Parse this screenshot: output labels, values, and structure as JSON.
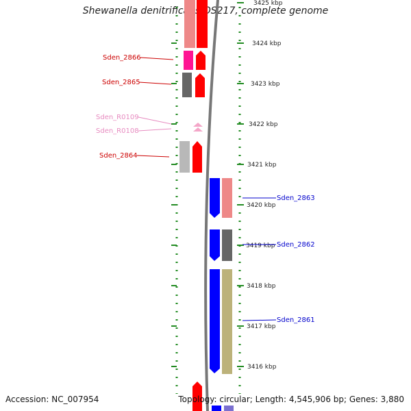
{
  "title": "Shewanella denitrificans OS217, complete genome",
  "footer": {
    "accession": "Accession: NC_007954",
    "topology": "Topology: circular; Length: 4,545,906 bp; Genes: 3,880"
  },
  "scale": {
    "unit": "kbp",
    "ticks": [
      {
        "label": "3425 kbp",
        "kbp": 3425
      },
      {
        "label": "3424 kbp",
        "kbp": 3424
      },
      {
        "label": "3423 kbp",
        "kbp": 3423
      },
      {
        "label": "3422 kbp",
        "kbp": 3422
      },
      {
        "label": "3421 kbp",
        "kbp": 3421
      },
      {
        "label": "3420 kbp",
        "kbp": 3420
      },
      {
        "label": "3419 kbp",
        "kbp": 3419
      },
      {
        "label": "3418 kbp",
        "kbp": 3418
      },
      {
        "label": "3417 kbp",
        "kbp": 3417
      },
      {
        "label": "3416 kbp",
        "kbp": 3416
      }
    ]
  },
  "colors": {
    "forward_cds": "#ff0000",
    "reverse_cds": "#0000ff",
    "backbone": "#777777",
    "tick_green": "#228b22",
    "forward_label": "#cc0000",
    "rna_label": "#e78bc0",
    "reverse_label": "#0000cc"
  },
  "genes": [
    {
      "name": "Sden_2866",
      "strand": "forward",
      "label_color": "#cc0000",
      "cog_color": "#ff1493"
    },
    {
      "name": "Sden_2865",
      "strand": "forward",
      "label_color": "#cc0000",
      "cog_color": "#666666"
    },
    {
      "name": "Sden_R0109",
      "strand": "forward",
      "label_color": "#e78bc0",
      "cog_color": "#f4a6c8"
    },
    {
      "name": "Sden_R0108",
      "strand": "forward",
      "label_color": "#e78bc0",
      "cog_color": "#f4a6c8"
    },
    {
      "name": "Sden_2864",
      "strand": "forward",
      "label_color": "#cc0000",
      "cog_color": "#b8b8b8"
    },
    {
      "name": "Sden_2863",
      "strand": "reverse",
      "label_color": "#0000cc",
      "cog_color": "#ee8888"
    },
    {
      "name": "Sden_2862",
      "strand": "reverse",
      "label_color": "#0000cc",
      "cog_color": "#666666"
    },
    {
      "name": "Sden_2861",
      "strand": "reverse",
      "label_color": "#0000cc",
      "cog_color": "#bcb27a"
    }
  ]
}
